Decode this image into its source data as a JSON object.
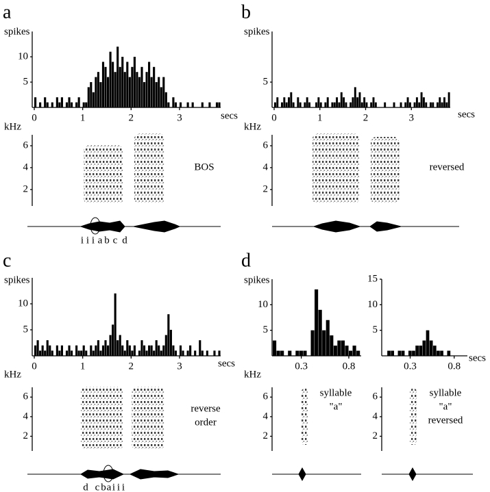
{
  "chart_data": [
    {
      "type": "histogram",
      "panel": "a",
      "ylabel": "spikes",
      "xlabel": "secs",
      "bins": [
        0,
        0.05,
        0.1,
        0.15,
        0.2,
        0.25,
        0.3,
        0.35,
        0.4,
        0.45,
        0.5,
        0.55,
        0.6,
        0.65,
        0.7,
        0.75,
        0.8,
        0.85,
        0.9,
        0.95,
        1,
        1.05,
        1.1,
        1.15,
        1.2,
        1.25,
        1.3,
        1.35,
        1.4,
        1.45,
        1.5,
        1.55,
        1.6,
        1.65,
        1.7,
        1.75,
        1.8,
        1.85,
        1.9,
        1.95,
        2,
        2.05,
        2.1,
        2.15,
        2.2,
        2.25,
        2.3,
        2.35,
        2.4,
        2.45,
        2.5,
        2.55,
        2.6,
        2.65,
        2.7,
        2.75,
        2.8,
        2.85,
        2.9,
        2.95,
        3,
        3.05,
        3.1,
        3.15,
        3.2,
        3.25,
        3.3,
        3.35,
        3.4,
        3.45,
        3.5,
        3.55,
        3.6,
        3.65,
        3.7,
        3.75,
        3.8,
        3.85
      ],
      "values": [
        2,
        0,
        1,
        0,
        2,
        1,
        0,
        1,
        0,
        2,
        1,
        2,
        0,
        1,
        2,
        1,
        0,
        1,
        2,
        0,
        1,
        1,
        4,
        5,
        3,
        6,
        7,
        5,
        9,
        8,
        6,
        11,
        9,
        7,
        12,
        8,
        10,
        7,
        9,
        6,
        8,
        10,
        7,
        6,
        8,
        5,
        7,
        9,
        6,
        8,
        5,
        6,
        4,
        6,
        3,
        1,
        0,
        2,
        1,
        0,
        1,
        0,
        0,
        1,
        0,
        1,
        0,
        0,
        0,
        1,
        0,
        0,
        1,
        0,
        0,
        1,
        1
      ],
      "color": "#000000",
      "xlim": [
        0,
        3.85
      ],
      "xticks": [
        0,
        1,
        2,
        3
      ],
      "ylim": [
        0,
        15
      ],
      "yticks": [
        5,
        10
      ]
    },
    {
      "type": "spectrogram",
      "ylabel": "kHz",
      "ylim": [
        0.5,
        7
      ],
      "yticks": [
        2,
        4,
        6
      ],
      "annotation": [
        "BOS"
      ],
      "syllables": [
        "i",
        "i",
        "i",
        "a",
        "b",
        "c",
        "d"
      ]
    },
    {
      "type": "histogram",
      "panel": "b",
      "ylabel": "spikes",
      "xlabel": "secs",
      "bins": [
        0,
        0.05,
        0.1,
        0.15,
        0.2,
        0.25,
        0.3,
        0.35,
        0.4,
        0.45,
        0.5,
        0.55,
        0.6,
        0.65,
        0.7,
        0.75,
        0.8,
        0.85,
        0.9,
        0.95,
        1,
        1.05,
        1.1,
        1.15,
        1.2,
        1.25,
        1.3,
        1.35,
        1.4,
        1.45,
        1.5,
        1.55,
        1.6,
        1.65,
        1.7,
        1.75,
        1.8,
        1.85,
        1.9,
        1.95,
        2,
        2.05,
        2.1,
        2.15,
        2.2,
        2.25,
        2.3,
        2.35,
        2.4,
        2.45,
        2.5,
        2.55,
        2.6,
        2.65,
        2.7,
        2.75,
        2.8,
        2.85,
        2.9,
        2.95,
        3,
        3.05,
        3.1,
        3.15,
        3.2,
        3.25,
        3.3,
        3.35,
        3.4,
        3.45,
        3.5,
        3.55,
        3.6,
        3.65,
        3.7,
        3.75,
        3.8,
        3.85
      ],
      "values": [
        1,
        2,
        0,
        1,
        2,
        1,
        2,
        3,
        1,
        0,
        2,
        1,
        0,
        1,
        2,
        1,
        0,
        0,
        1,
        2,
        1,
        0,
        1,
        2,
        0,
        1,
        1,
        2,
        1,
        3,
        2,
        1,
        0,
        1,
        2,
        4,
        2,
        3,
        1,
        2,
        1,
        0,
        1,
        2,
        1,
        0,
        0,
        0,
        1,
        0,
        0,
        0,
        1,
        0,
        0,
        1,
        0,
        1,
        2,
        1,
        0,
        1,
        2,
        1,
        3,
        2,
        1,
        0,
        1,
        1,
        0,
        1,
        2,
        1,
        2,
        1,
        3
      ],
      "color": "#000000",
      "xlim": [
        0,
        3.85
      ],
      "xticks": [
        0,
        1,
        2,
        3
      ],
      "ylim": [
        0,
        15
      ],
      "yticks": [
        5
      ]
    },
    {
      "type": "spectrogram",
      "ylabel": "kHz",
      "ylim": [
        0.5,
        7
      ],
      "yticks": [
        2,
        4,
        6
      ],
      "annotation": [
        "reversed"
      ]
    },
    {
      "type": "histogram",
      "panel": "c",
      "ylabel": "spikes",
      "xlabel": "secs",
      "bins": [
        0,
        0.05,
        0.1,
        0.15,
        0.2,
        0.25,
        0.3,
        0.35,
        0.4,
        0.45,
        0.5,
        0.55,
        0.6,
        0.65,
        0.7,
        0.75,
        0.8,
        0.85,
        0.9,
        0.95,
        1,
        1.05,
        1.1,
        1.15,
        1.2,
        1.25,
        1.3,
        1.35,
        1.4,
        1.45,
        1.5,
        1.55,
        1.6,
        1.65,
        1.7,
        1.75,
        1.8,
        1.85,
        1.9,
        1.95,
        2,
        2.05,
        2.1,
        2.15,
        2.2,
        2.25,
        2.3,
        2.35,
        2.4,
        2.45,
        2.5,
        2.55,
        2.6,
        2.65,
        2.7,
        2.75,
        2.8,
        2.85,
        2.9,
        2.95,
        3,
        3.05,
        3.1,
        3.15,
        3.2,
        3.25,
        3.3,
        3.35,
        3.4,
        3.45,
        3.5,
        3.55,
        3.6,
        3.65,
        3.7,
        3.75,
        3.8,
        3.85
      ],
      "values": [
        2,
        3,
        1,
        2,
        1,
        3,
        2,
        1,
        0,
        2,
        1,
        2,
        0,
        1,
        2,
        1,
        0,
        2,
        1,
        1,
        2,
        1,
        0,
        2,
        1,
        2,
        3,
        1,
        2,
        3,
        2,
        4,
        6,
        12,
        3,
        4,
        2,
        1,
        3,
        2,
        1,
        2,
        0,
        1,
        3,
        2,
        1,
        2,
        2,
        1,
        3,
        2,
        1,
        2,
        4,
        8,
        5,
        2,
        1,
        0,
        2,
        1,
        0,
        1,
        2,
        0,
        1,
        0,
        3,
        1,
        0,
        1,
        0,
        0,
        1,
        0,
        1
      ],
      "color": "#000000",
      "xlim": [
        0,
        3.85
      ],
      "xticks": [
        0,
        1,
        2,
        3
      ],
      "ylim": [
        0,
        15
      ],
      "yticks": [
        5,
        10
      ]
    },
    {
      "type": "spectrogram",
      "ylabel": "kHz",
      "ylim": [
        0.5,
        7
      ],
      "yticks": [
        2,
        4,
        6
      ],
      "annotation": [
        "reverse",
        "order"
      ],
      "syllables": [
        "d",
        "c",
        "b",
        "a",
        "i",
        "i",
        "i"
      ]
    },
    {
      "type": "histogram",
      "panel": "d",
      "ylabel": "spikes",
      "bins": [
        0,
        0.04,
        0.08,
        0.12,
        0.16,
        0.2,
        0.24,
        0.28,
        0.32,
        0.36,
        0.4,
        0.44,
        0.48,
        0.52,
        0.56,
        0.6,
        0.64,
        0.68,
        0.72,
        0.76,
        0.8,
        0.84,
        0.88,
        0.92
      ],
      "values": [
        3,
        1,
        1,
        0,
        1,
        0,
        1,
        1,
        1,
        0,
        5,
        13,
        9,
        5,
        7,
        4,
        2,
        3,
        3,
        2,
        1,
        2,
        1
      ],
      "color": "#000000",
      "xlim": [
        0,
        0.93
      ],
      "xticks": [
        0.3,
        0.8
      ],
      "ylim": [
        0,
        15
      ],
      "yticks": [
        5,
        10
      ]
    },
    {
      "type": "histogram",
      "xlabel": "secs",
      "bins": [
        0,
        0.04,
        0.08,
        0.12,
        0.16,
        0.2,
        0.24,
        0.28,
        0.32,
        0.36,
        0.4,
        0.44,
        0.48,
        0.52,
        0.56,
        0.6,
        0.64,
        0.68,
        0.72,
        0.76,
        0.8,
        0.84,
        0.88,
        0.92
      ],
      "values": [
        0,
        1,
        1,
        0,
        1,
        1,
        0,
        1,
        1,
        2,
        2,
        3,
        5,
        3,
        2,
        1,
        1,
        0,
        1,
        0,
        0,
        0,
        0
      ],
      "color": "#000000",
      "xlim": [
        0,
        0.95
      ],
      "xticks": [
        0.3,
        0.8
      ],
      "ylim": [
        0,
        15
      ],
      "yticks": [
        5,
        10,
        15
      ]
    },
    {
      "type": "spectrogram",
      "ylabel": "kHz",
      "ylim": [
        0.5,
        7
      ],
      "yticks": [
        2,
        4,
        6
      ],
      "annotation": [
        "syllable",
        "\"a\""
      ]
    },
    {
      "type": "spectrogram",
      "ylim": [
        0.5,
        7
      ],
      "yticks": [
        2,
        4,
        6
      ],
      "annotation": [
        "syllable",
        "\"a\"",
        "reversed"
      ]
    }
  ]
}
